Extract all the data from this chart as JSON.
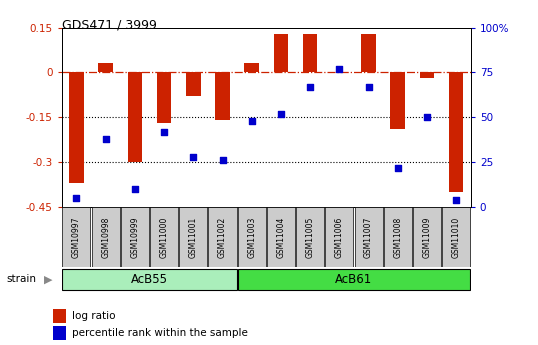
{
  "title": "GDS471 / 3999",
  "samples": [
    "GSM10997",
    "GSM10998",
    "GSM10999",
    "GSM11000",
    "GSM11001",
    "GSM11002",
    "GSM11003",
    "GSM11004",
    "GSM11005",
    "GSM11006",
    "GSM11007",
    "GSM11008",
    "GSM11009",
    "GSM11010"
  ],
  "log_ratio": [
    -0.37,
    0.03,
    -0.3,
    -0.17,
    -0.08,
    -0.16,
    0.03,
    0.13,
    0.13,
    0.0,
    0.13,
    -0.19,
    -0.02,
    -0.4
  ],
  "percentile": [
    5,
    38,
    10,
    42,
    28,
    26,
    48,
    52,
    67,
    77,
    67,
    22,
    50,
    4
  ],
  "strain_labels": [
    "AcB55",
    "AcB61"
  ],
  "strain_n": [
    6,
    8
  ],
  "bar_color": "#CC2200",
  "dot_color": "#0000CC",
  "ylim_left": [
    -0.45,
    0.15
  ],
  "ylim_right": [
    0,
    100
  ],
  "hline_y": 0.0,
  "dotted_lines": [
    -0.15,
    -0.3
  ],
  "right_ticks": [
    0,
    25,
    50,
    75,
    100
  ],
  "right_tick_labels": [
    "0",
    "25",
    "50",
    "75",
    "100%"
  ],
  "left_ticks": [
    -0.45,
    -0.3,
    -0.15,
    0.0,
    0.15
  ],
  "left_tick_labels": [
    "-0.45",
    "-0.3",
    "-0.15",
    "0",
    "0.15"
  ],
  "acb55_color": "#AAEEBB",
  "acb61_color": "#44DD44",
  "sample_box_color": "#CCCCCC"
}
